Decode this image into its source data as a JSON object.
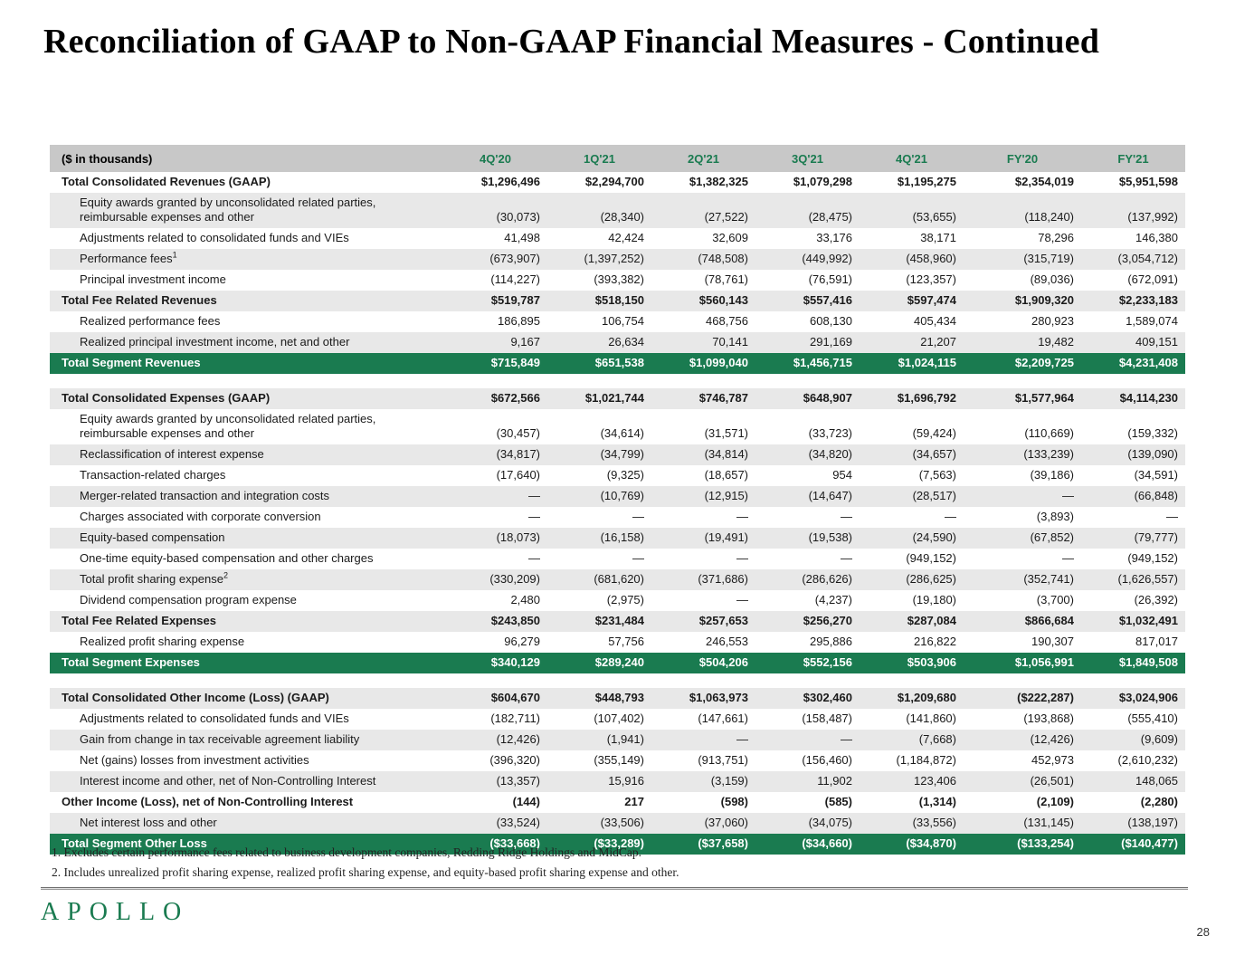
{
  "title": "Reconciliation of GAAP to Non-GAAP Financial Measures - Continued",
  "brand": {
    "logo_text": "APOLLO",
    "green": "#1a7b50",
    "header_band_gray": "#c8c8c8",
    "zebra_gray": "#e8e8e8"
  },
  "page_number": "28",
  "table": {
    "unit_label": "($ in thousands)",
    "columns": [
      "4Q'20",
      "1Q'21",
      "2Q'21",
      "3Q'21",
      "4Q'21",
      "FY'20",
      "FY'21"
    ],
    "sections": [
      {
        "rows": [
          {
            "label": "Total Consolidated Revenues (GAAP)",
            "style": "total",
            "values": [
              "$1,296,496",
              "$2,294,700",
              "$1,382,325",
              "$1,079,298",
              "$1,195,275",
              "$2,354,019",
              "$5,951,598"
            ]
          },
          {
            "label": "Equity awards granted by unconsolidated related parties, reimbursable expenses and other",
            "style": "sub",
            "values": [
              "(30,073)",
              "(28,340)",
              "(27,522)",
              "(28,475)",
              "(53,655)",
              "(118,240)",
              "(137,992)"
            ]
          },
          {
            "label": "Adjustments related to consolidated funds and VIEs",
            "style": "sub",
            "values": [
              "41,498",
              "42,424",
              "32,609",
              "33,176",
              "38,171",
              "78,296",
              "146,380"
            ]
          },
          {
            "label": "Performance fees",
            "sup": "1",
            "style": "sub",
            "values": [
              "(673,907)",
              "(1,397,252)",
              "(748,508)",
              "(449,992)",
              "(458,960)",
              "(315,719)",
              "(3,054,712)"
            ]
          },
          {
            "label": "Principal investment income",
            "style": "sub",
            "values": [
              "(114,227)",
              "(393,382)",
              "(78,761)",
              "(76,591)",
              "(123,357)",
              "(89,036)",
              "(672,091)"
            ]
          },
          {
            "label": "Total Fee Related Revenues",
            "style": "total",
            "values": [
              "$519,787",
              "$518,150",
              "$560,143",
              "$557,416",
              "$597,474",
              "$1,909,320",
              "$2,233,183"
            ]
          },
          {
            "label": "Realized performance fees",
            "style": "sub",
            "values": [
              "186,895",
              "106,754",
              "468,756",
              "608,130",
              "405,434",
              "280,923",
              "1,589,074"
            ]
          },
          {
            "label": "Realized principal investment income, net and other",
            "style": "sub",
            "values": [
              "9,167",
              "26,634",
              "70,141",
              "291,169",
              "21,207",
              "19,482",
              "409,151"
            ]
          },
          {
            "label": "Total Segment Revenues",
            "style": "segment",
            "values": [
              "$715,849",
              "$651,538",
              "$1,099,040",
              "$1,456,715",
              "$1,024,115",
              "$2,209,725",
              "$4,231,408"
            ]
          }
        ]
      },
      {
        "rows": [
          {
            "label": "Total Consolidated Expenses (GAAP)",
            "style": "total",
            "values": [
              "$672,566",
              "$1,021,744",
              "$746,787",
              "$648,907",
              "$1,696,792",
              "$1,577,964",
              "$4,114,230"
            ]
          },
          {
            "label": "Equity awards granted by unconsolidated related parties, reimbursable expenses and other",
            "style": "sub",
            "values": [
              "(30,457)",
              "(34,614)",
              "(31,571)",
              "(33,723)",
              "(59,424)",
              "(110,669)",
              "(159,332)"
            ]
          },
          {
            "label": "Reclassification of interest expense",
            "style": "sub",
            "values": [
              "(34,817)",
              "(34,799)",
              "(34,814)",
              "(34,820)",
              "(34,657)",
              "(133,239)",
              "(139,090)"
            ]
          },
          {
            "label": "Transaction-related charges",
            "style": "sub",
            "values": [
              "(17,640)",
              "(9,325)",
              "(18,657)",
              "954",
              "(7,563)",
              "(39,186)",
              "(34,591)"
            ]
          },
          {
            "label": "Merger-related transaction and integration costs",
            "style": "sub",
            "values": [
              "—",
              "(10,769)",
              "(12,915)",
              "(14,647)",
              "(28,517)",
              "—",
              "(66,848)"
            ]
          },
          {
            "label": "Charges associated with corporate conversion",
            "style": "sub",
            "values": [
              "—",
              "—",
              "—",
              "—",
              "—",
              "(3,893)",
              "—"
            ]
          },
          {
            "label": "Equity-based compensation",
            "style": "sub",
            "values": [
              "(18,073)",
              "(16,158)",
              "(19,491)",
              "(19,538)",
              "(24,590)",
              "(67,852)",
              "(79,777)"
            ]
          },
          {
            "label": "One-time equity-based compensation and other charges",
            "style": "sub",
            "values": [
              "—",
              "—",
              "—",
              "—",
              "(949,152)",
              "—",
              "(949,152)"
            ]
          },
          {
            "label": "Total profit sharing expense",
            "sup": "2",
            "style": "sub",
            "values": [
              "(330,209)",
              "(681,620)",
              "(371,686)",
              "(286,626)",
              "(286,625)",
              "(352,741)",
              "(1,626,557)"
            ]
          },
          {
            "label": "Dividend compensation program expense",
            "style": "sub",
            "values": [
              "2,480",
              "(2,975)",
              "—",
              "(4,237)",
              "(19,180)",
              "(3,700)",
              "(26,392)"
            ]
          },
          {
            "label": "Total Fee Related Expenses",
            "style": "total",
            "values": [
              "$243,850",
              "$231,484",
              "$257,653",
              "$256,270",
              "$287,084",
              "$866,684",
              "$1,032,491"
            ]
          },
          {
            "label": "Realized profit sharing expense",
            "style": "sub",
            "values": [
              "96,279",
              "57,756",
              "246,553",
              "295,886",
              "216,822",
              "190,307",
              "817,017"
            ]
          },
          {
            "label": "Total Segment Expenses",
            "style": "segment",
            "values": [
              "$340,129",
              "$289,240",
              "$504,206",
              "$552,156",
              "$503,906",
              "$1,056,991",
              "$1,849,508"
            ]
          }
        ]
      },
      {
        "rows": [
          {
            "label": "Total Consolidated Other Income (Loss) (GAAP)",
            "style": "total",
            "values": [
              "$604,670",
              "$448,793",
              "$1,063,973",
              "$302,460",
              "$1,209,680",
              "($222,287)",
              "$3,024,906"
            ]
          },
          {
            "label": "Adjustments related to consolidated funds and VIEs",
            "style": "sub",
            "values": [
              "(182,711)",
              "(107,402)",
              "(147,661)",
              "(158,487)",
              "(141,860)",
              "(193,868)",
              "(555,410)"
            ]
          },
          {
            "label": "Gain from change in tax receivable agreement liability",
            "style": "sub",
            "values": [
              "(12,426)",
              "(1,941)",
              "—",
              "—",
              "(7,668)",
              "(12,426)",
              "(9,609)"
            ]
          },
          {
            "label": "Net (gains) losses from investment activities",
            "style": "sub",
            "values": [
              "(396,320)",
              "(355,149)",
              "(913,751)",
              "(156,460)",
              "(1,184,872)",
              "452,973",
              "(2,610,232)"
            ]
          },
          {
            "label": "Interest income and other, net of Non-Controlling Interest",
            "style": "sub",
            "values": [
              "(13,357)",
              "15,916",
              "(3,159)",
              "11,902",
              "123,406",
              "(26,501)",
              "148,065"
            ]
          },
          {
            "label": "Other Income (Loss), net of Non-Controlling Interest",
            "style": "total",
            "values": [
              "(144)",
              "217",
              "(598)",
              "(585)",
              "(1,314)",
              "(2,109)",
              "(2,280)"
            ]
          },
          {
            "label": "Net interest loss and other",
            "style": "sub",
            "values": [
              "(33,524)",
              "(33,506)",
              "(37,060)",
              "(34,075)",
              "(33,556)",
              "(131,145)",
              "(138,197)"
            ]
          },
          {
            "label": "Total Segment Other Loss",
            "style": "segment",
            "values": [
              "($33,668)",
              "($33,289)",
              "($37,658)",
              "($34,660)",
              "($34,870)",
              "($133,254)",
              "($140,477)"
            ]
          }
        ]
      }
    ]
  },
  "footnotes": [
    {
      "num": "1.",
      "text": "Excludes certain performance fees related to business development companies, Redding Ridge Holdings and MidCap."
    },
    {
      "num": "2.",
      "text": "Includes unrealized profit sharing expense, realized profit sharing expense, and equity-based profit sharing expense and other."
    }
  ]
}
